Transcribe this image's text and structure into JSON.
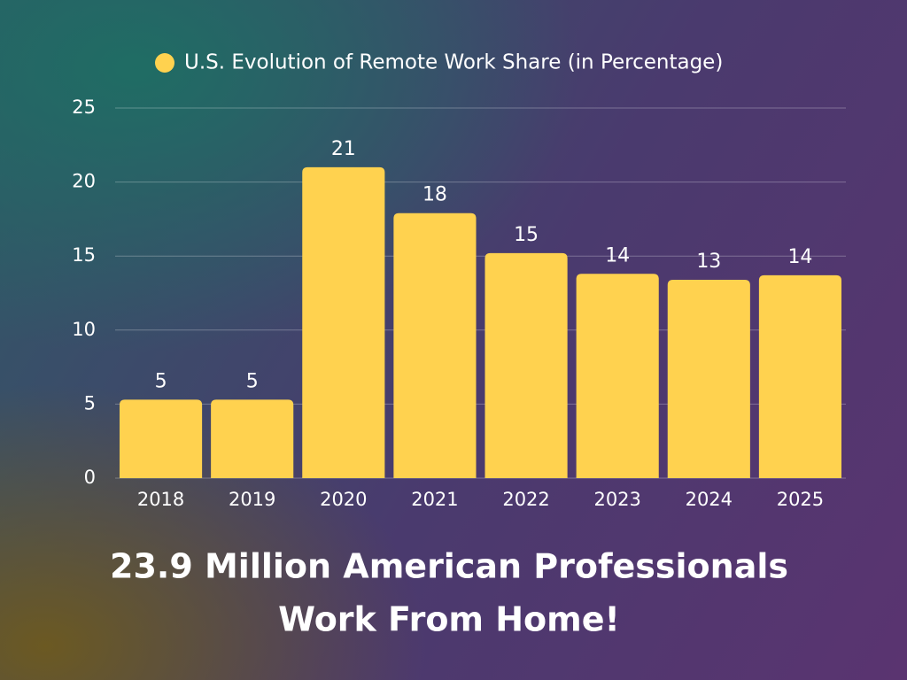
{
  "chart_data": {
    "type": "bar",
    "categories": [
      "2018",
      "2019",
      "2020",
      "2021",
      "2022",
      "2023",
      "2024",
      "2025"
    ],
    "series": [
      {
        "name": "U.S. Evolution of Remote Work Share (in Percentage)",
        "color": "#ffd24f",
        "values": [
          5.3,
          5.3,
          21,
          17.9,
          15.2,
          13.8,
          13.4,
          13.7
        ],
        "value_labels": [
          "5",
          "5",
          "21",
          "18",
          "15",
          "14",
          "13",
          "14"
        ]
      }
    ],
    "ylim": [
      0,
      25
    ],
    "yticks": [
      0,
      5,
      10,
      15,
      20,
      25
    ],
    "grid": true,
    "annotation": [
      "23.9 Million American Professionals",
      "Work From Home!"
    ]
  }
}
